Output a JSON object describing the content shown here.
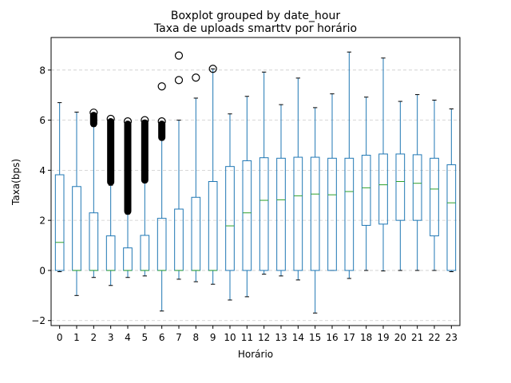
{
  "chart_data": {
    "type": "boxplot",
    "suptitle": "Boxplot grouped by date_hour",
    "title": "Taxa de uploads smarttv por horário",
    "xlabel": "Horário",
    "ylabel": "Taxa(bps)",
    "ylim": [
      -2.2,
      9.3
    ],
    "yticks": [
      -2,
      0,
      2,
      4,
      6,
      8
    ],
    "grid": "horizontal dashed",
    "colors": {
      "box": "#1f77b4",
      "median": "#2ca02c",
      "grid": "#cccccc",
      "flier": "#000000"
    },
    "categories": [
      "0",
      "1",
      "2",
      "3",
      "4",
      "5",
      "6",
      "7",
      "8",
      "9",
      "10",
      "11",
      "12",
      "13",
      "14",
      "15",
      "16",
      "17",
      "18",
      "19",
      "20",
      "21",
      "22",
      "23"
    ],
    "boxes": [
      {
        "min": -0.05,
        "q1": 0,
        "median": 1.12,
        "q3": 3.82,
        "max": 6.7
      },
      {
        "min": -1.0,
        "q1": 0,
        "median": 0,
        "q3": 3.35,
        "max": 6.32
      },
      {
        "min": -0.28,
        "q1": 0,
        "median": 0,
        "q3": 2.3,
        "max": 5.75
      },
      {
        "min": -0.6,
        "q1": 0,
        "median": 0,
        "q3": 1.38,
        "max": 3.4
      },
      {
        "min": -0.28,
        "q1": 0,
        "median": 0,
        "q3": 0.9,
        "max": 2.25
      },
      {
        "min": -0.22,
        "q1": 0,
        "median": 0,
        "q3": 1.4,
        "max": 3.5
      },
      {
        "min": -1.62,
        "q1": 0,
        "median": 0,
        "q3": 2.08,
        "max": 5.2
      },
      {
        "min": -0.35,
        "q1": 0,
        "median": 0,
        "q3": 2.45,
        "max": 6.0
      },
      {
        "min": -0.45,
        "q1": 0,
        "median": 0,
        "q3": 2.92,
        "max": 6.88
      },
      {
        "min": -0.55,
        "q1": 0,
        "median": 0,
        "q3": 3.55,
        "max": 8.05
      },
      {
        "min": -1.18,
        "q1": 0,
        "median": 1.78,
        "q3": 4.15,
        "max": 6.25
      },
      {
        "min": -1.05,
        "q1": 0,
        "median": 2.3,
        "q3": 4.38,
        "max": 6.95
      },
      {
        "min": -0.15,
        "q1": 0,
        "median": 2.8,
        "q3": 4.5,
        "max": 7.92
      },
      {
        "min": -0.22,
        "q1": 0,
        "median": 2.82,
        "q3": 4.48,
        "max": 6.62
      },
      {
        "min": -0.38,
        "q1": 0,
        "median": 2.98,
        "q3": 4.52,
        "max": 7.68
      },
      {
        "min": -1.7,
        "q1": 0,
        "median": 3.05,
        "q3": 4.52,
        "max": 6.5
      },
      {
        "min": 0.0,
        "q1": 0,
        "median": 3.02,
        "q3": 4.48,
        "max": 7.05
      },
      {
        "min": -0.32,
        "q1": 0,
        "median": 3.15,
        "q3": 4.48,
        "max": 8.72
      },
      {
        "min": 0.0,
        "q1": 1.8,
        "median": 3.3,
        "q3": 4.6,
        "max": 6.92
      },
      {
        "min": -0.02,
        "q1": 1.85,
        "median": 3.42,
        "q3": 4.65,
        "max": 8.48
      },
      {
        "min": 0.0,
        "q1": 2.0,
        "median": 3.55,
        "q3": 4.65,
        "max": 6.75
      },
      {
        "min": 0.0,
        "q1": 2.0,
        "median": 3.48,
        "q3": 4.62,
        "max": 7.02
      },
      {
        "min": 0.0,
        "q1": 1.38,
        "median": 3.25,
        "q3": 4.48,
        "max": 6.8
      },
      {
        "min": -0.05,
        "q1": 0,
        "median": 2.7,
        "q3": 4.22,
        "max": 6.45
      }
    ],
    "outliers": [
      {
        "category": "2",
        "range": [
          5.75,
          6.3
        ],
        "dense": true
      },
      {
        "category": "3",
        "range": [
          3.42,
          6.05
        ],
        "dense": true
      },
      {
        "category": "4",
        "range": [
          2.25,
          5.95
        ],
        "dense": true
      },
      {
        "category": "5",
        "range": [
          3.5,
          6.0
        ],
        "dense": true
      },
      {
        "category": "6",
        "range": [
          5.2,
          5.95
        ],
        "dense": true
      },
      {
        "category": "6",
        "values": [
          7.35
        ]
      },
      {
        "category": "7",
        "values": [
          7.6,
          8.58
        ]
      },
      {
        "category": "8",
        "values": [
          7.7
        ]
      },
      {
        "category": "9",
        "values": [
          8.05
        ]
      }
    ]
  }
}
